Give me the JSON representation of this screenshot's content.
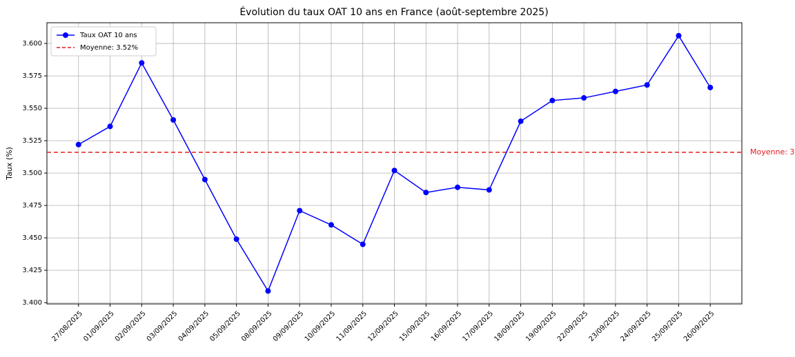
{
  "chart_data": {
    "type": "line",
    "title": "Évolution du taux OAT 10 ans en France (août-septembre 2025)",
    "y_label": "Taux (%)",
    "categories": [
      "27/08/2025",
      "01/09/2025",
      "02/09/2025",
      "03/09/2025",
      "04/09/2025",
      "05/09/2025",
      "08/09/2025",
      "09/09/2025",
      "10/09/2025",
      "11/09/2025",
      "12/09/2025",
      "15/09/2025",
      "16/09/2025",
      "17/09/2025",
      "18/09/2025",
      "19/09/2025",
      "22/09/2025",
      "23/09/2025",
      "24/09/2025",
      "25/09/2025",
      "26/09/2025"
    ],
    "series": [
      {
        "name": "Taux OAT 10 ans",
        "color": "#0000ff",
        "values": [
          3.522,
          3.536,
          3.585,
          3.541,
          3.495,
          3.449,
          3.409,
          3.471,
          3.46,
          3.445,
          3.502,
          3.485,
          3.489,
          3.487,
          3.54,
          3.556,
          3.558,
          3.563,
          3.568,
          3.606,
          3.566
        ]
      }
    ],
    "reference_line": {
      "name": "Moyenne: 3.52%",
      "value": 3.516,
      "color": "#e41a1c"
    },
    "ylim": [
      3.399,
      3.616
    ],
    "yticks": [
      {
        "value": 3.4,
        "label": "3.400"
      },
      {
        "value": 3.425,
        "label": "3.425"
      },
      {
        "value": 3.45,
        "label": "3.450"
      },
      {
        "value": 3.475,
        "label": "3.475"
      },
      {
        "value": 3.5,
        "label": "3.500"
      },
      {
        "value": 3.525,
        "label": "3.525"
      },
      {
        "value": 3.55,
        "label": "3.550"
      },
      {
        "value": 3.575,
        "label": "3.575"
      },
      {
        "value": 3.6,
        "label": "3.600"
      }
    ],
    "grid": true,
    "legend": "upper-left"
  }
}
